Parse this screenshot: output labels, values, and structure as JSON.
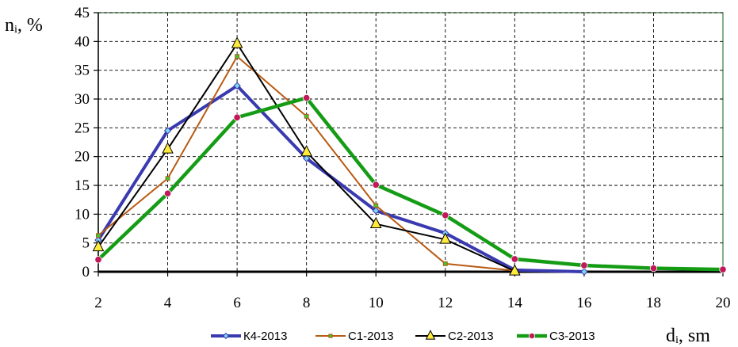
{
  "chart_data": {
    "type": "line",
    "ylabel": "nᵢ, %",
    "xlabel": "dᵢ, sm",
    "x": [
      2,
      4,
      6,
      8,
      10,
      12,
      14,
      16,
      18,
      20
    ],
    "xlim": [
      2,
      20
    ],
    "ylim": [
      0,
      45
    ],
    "xticks": [
      "2",
      "4",
      "6",
      "8",
      "10",
      "12",
      "14",
      "16",
      "18",
      "20"
    ],
    "yticks": [
      "0",
      "5",
      "10",
      "15",
      "20",
      "25",
      "30",
      "35",
      "40",
      "45"
    ],
    "grid": true,
    "legend_position": "bottom",
    "series": [
      {
        "name": "К4-2013",
        "color": "#3a3ab0",
        "marker": "diamond",
        "marker_fill": "#7fd4f0",
        "values": [
          5.5,
          24.5,
          32.3,
          19.7,
          10.6,
          6.7,
          0.3,
          0,
          null,
          null
        ]
      },
      {
        "name": "С1-2013",
        "color": "#b85a12",
        "marker": "square",
        "marker_fill": "#33cc33",
        "values": [
          6.3,
          16.2,
          37.4,
          27.0,
          11.5,
          1.4,
          0.2,
          null,
          null,
          null
        ]
      },
      {
        "name": "С2-2013",
        "color": "#000000",
        "marker": "triangle",
        "marker_fill": "#ffeb3b",
        "values": [
          4.3,
          21.3,
          39.6,
          20.8,
          8.3,
          5.6,
          0.1,
          null,
          null,
          null
        ]
      },
      {
        "name": "С3-2013",
        "color": "#159c15",
        "marker": "circle",
        "marker_fill": "#c2185b",
        "values": [
          2.1,
          13.6,
          26.8,
          30.2,
          15.1,
          9.8,
          2.2,
          1.1,
          0.6,
          0.4
        ]
      }
    ]
  }
}
